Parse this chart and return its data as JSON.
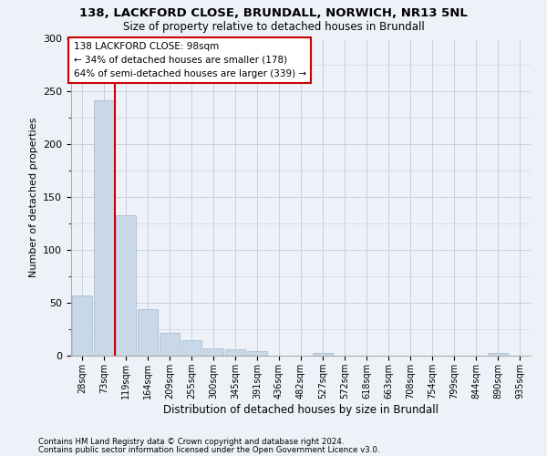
{
  "title_line1": "138, LACKFORD CLOSE, BRUNDALL, NORWICH, NR13 5NL",
  "title_line2": "Size of property relative to detached houses in Brundall",
  "xlabel": "Distribution of detached houses by size in Brundall",
  "ylabel": "Number of detached properties",
  "bar_labels": [
    "28sqm",
    "73sqm",
    "119sqm",
    "164sqm",
    "209sqm",
    "255sqm",
    "300sqm",
    "345sqm",
    "391sqm",
    "436sqm",
    "482sqm",
    "527sqm",
    "572sqm",
    "618sqm",
    "663sqm",
    "708sqm",
    "754sqm",
    "799sqm",
    "844sqm",
    "890sqm",
    "935sqm"
  ],
  "bar_values": [
    57,
    242,
    133,
    44,
    22,
    15,
    7,
    6,
    4,
    0,
    0,
    3,
    0,
    0,
    0,
    0,
    0,
    0,
    0,
    3,
    0
  ],
  "bar_color": "#c8d8e8",
  "bar_edge_color": "#a0b8cc",
  "grid_color": "#c8d0dc",
  "background_color": "#eef2f8",
  "vline_x": 1.5,
  "vline_color": "#cc0000",
  "annotation_text": "138 LACKFORD CLOSE: 98sqm\n← 34% of detached houses are smaller (178)\n64% of semi-detached houses are larger (339) →",
  "annotation_box_color": "#ffffff",
  "annotation_box_edge": "#cc0000",
  "ylim": [
    0,
    300
  ],
  "yticks": [
    0,
    50,
    100,
    150,
    200,
    250,
    300
  ],
  "footer_line1": "Contains HM Land Registry data © Crown copyright and database right 2024.",
  "footer_line2": "Contains public sector information licensed under the Open Government Licence v3.0."
}
